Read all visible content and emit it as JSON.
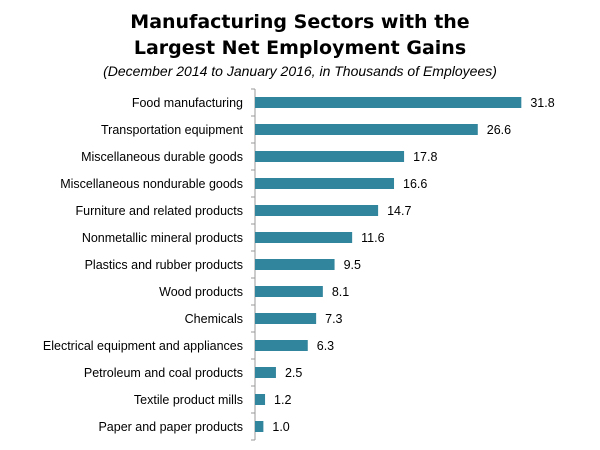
{
  "chart_data": {
    "type": "bar",
    "orientation": "horizontal",
    "title_line1": "Manufacturing  Sectors with the",
    "title_line2": "Largest Net Employment Gains",
    "subtitle": "(December 2014 to January 2016, in Thousands of Employees)",
    "categories": [
      "Food manufacturing",
      "Transportation equipment",
      "Miscellaneous durable goods",
      "Miscellaneous nondurable goods",
      "Furniture and related products",
      "Nonmetallic mineral products",
      "Plastics and rubber products",
      "Wood products",
      "Chemicals",
      "Electrical equipment and appliances",
      "Petroleum and coal products",
      "Textile product mills",
      "Paper and paper products"
    ],
    "values": [
      31.8,
      26.6,
      17.8,
      16.6,
      14.7,
      11.6,
      9.5,
      8.1,
      7.3,
      6.3,
      2.5,
      1.2,
      1.0
    ],
    "value_labels": [
      "31.8",
      "26.6",
      "17.8",
      "16.6",
      "14.7",
      "11.6",
      "9.5",
      "8.1",
      "7.3",
      "6.3",
      "2.5",
      "1.2",
      "1.0"
    ],
    "xlim": [
      0,
      32
    ],
    "grid": false,
    "legend": "none",
    "bar_color": "#31859c"
  }
}
